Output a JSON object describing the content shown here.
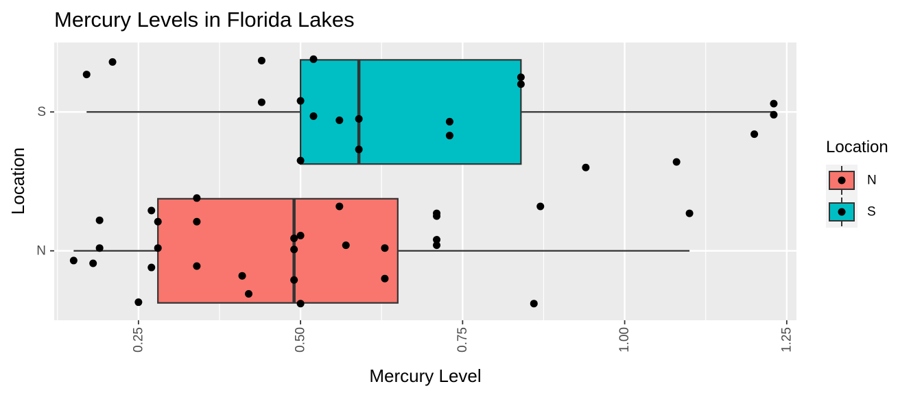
{
  "chart_data": {
    "type": "boxplot",
    "orientation": "horizontal",
    "title": "Mercury Levels in Florida Lakes",
    "xlabel": "Mercury Level",
    "ylabel": "Location",
    "xlim": [
      0.12,
      1.265
    ],
    "xticks": [
      0.25,
      0.5,
      0.75,
      1.0,
      1.25
    ],
    "xtick_labels": [
      "0.25",
      "0.50",
      "0.75",
      "1.00",
      "1.25"
    ],
    "categories": [
      "N",
      "S"
    ],
    "grid": true,
    "legend": {
      "title": "Location",
      "position": "right",
      "entries": [
        "N",
        "S"
      ]
    },
    "colors": {
      "N": "#F8766D",
      "S": "#00BFC4",
      "panel": "#EBEBEB",
      "points": "#000000"
    },
    "boxes": [
      {
        "group": "N",
        "whisker_low": 0.15,
        "q1": 0.28,
        "median": 0.49,
        "q3": 0.65,
        "whisker_high": 1.1
      },
      {
        "group": "S",
        "whisker_low": 0.17,
        "q1": 0.5,
        "median": 0.59,
        "q3": 0.84,
        "whisker_high": 1.23
      }
    ],
    "points": {
      "N": [
        {
          "x": 0.15,
          "jitter": -0.07
        },
        {
          "x": 0.18,
          "jitter": -0.09
        },
        {
          "x": 0.19,
          "jitter": 0.22
        },
        {
          "x": 0.19,
          "jitter": 0.02
        },
        {
          "x": 0.25,
          "jitter": -0.37
        },
        {
          "x": 0.27,
          "jitter": 0.29
        },
        {
          "x": 0.27,
          "jitter": -0.12
        },
        {
          "x": 0.28,
          "jitter": 0.21
        },
        {
          "x": 0.28,
          "jitter": 0.02
        },
        {
          "x": 0.34,
          "jitter": 0.38
        },
        {
          "x": 0.34,
          "jitter": 0.21
        },
        {
          "x": 0.34,
          "jitter": -0.11
        },
        {
          "x": 0.41,
          "jitter": -0.18
        },
        {
          "x": 0.42,
          "jitter": -0.31
        },
        {
          "x": 0.49,
          "jitter": -0.21
        },
        {
          "x": 0.49,
          "jitter": 0.09
        },
        {
          "x": 0.49,
          "jitter": 0.01
        },
        {
          "x": 0.5,
          "jitter": 0.11
        },
        {
          "x": 0.5,
          "jitter": -0.38
        },
        {
          "x": 0.56,
          "jitter": 0.32
        },
        {
          "x": 0.57,
          "jitter": 0.04
        },
        {
          "x": 0.63,
          "jitter": 0.02
        },
        {
          "x": 0.63,
          "jitter": -0.2
        },
        {
          "x": 0.71,
          "jitter": 0.25
        },
        {
          "x": 0.71,
          "jitter": 0.27
        },
        {
          "x": 0.71,
          "jitter": 0.08
        },
        {
          "x": 0.71,
          "jitter": 0.04
        },
        {
          "x": 0.86,
          "jitter": -0.38
        },
        {
          "x": 0.87,
          "jitter": 0.32
        },
        {
          "x": 1.1,
          "jitter": 0.27
        }
      ],
      "S": [
        {
          "x": 0.17,
          "jitter": 0.27
        },
        {
          "x": 0.21,
          "jitter": 0.36
        },
        {
          "x": 0.44,
          "jitter": 0.37
        },
        {
          "x": 0.44,
          "jitter": 0.07
        },
        {
          "x": 0.5,
          "jitter": 0.08
        },
        {
          "x": 0.5,
          "jitter": -0.35
        },
        {
          "x": 0.52,
          "jitter": 0.38
        },
        {
          "x": 0.52,
          "jitter": -0.03
        },
        {
          "x": 0.56,
          "jitter": -0.06
        },
        {
          "x": 0.59,
          "jitter": -0.05
        },
        {
          "x": 0.59,
          "jitter": -0.27
        },
        {
          "x": 0.73,
          "jitter": -0.07
        },
        {
          "x": 0.73,
          "jitter": -0.17
        },
        {
          "x": 0.84,
          "jitter": 0.25
        },
        {
          "x": 0.84,
          "jitter": 0.2
        },
        {
          "x": 0.94,
          "jitter": -0.4
        },
        {
          "x": 1.08,
          "jitter": -0.36
        },
        {
          "x": 1.2,
          "jitter": -0.16
        },
        {
          "x": 1.23,
          "jitter": 0.06
        },
        {
          "x": 1.23,
          "jitter": -0.02
        }
      ]
    }
  }
}
